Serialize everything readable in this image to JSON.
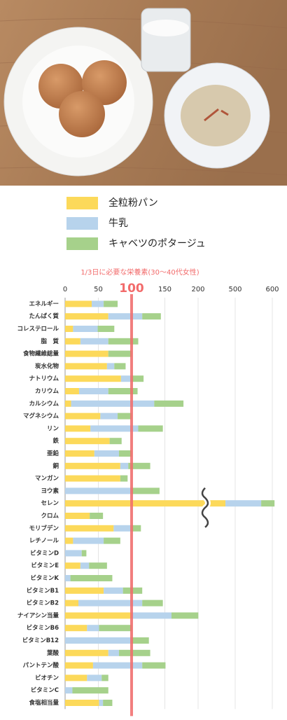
{
  "chart_data": {
    "type": "stacked-bar-horizontal",
    "title": "1/3日に必要な栄養素(30〜40代女性)",
    "categories": [
      "エネルギー",
      "たんぱく質",
      "コレステロール",
      "脂　質",
      "食物繊維総量",
      "炭水化物",
      "ナトリウム",
      "カリウム",
      "カルシウム",
      "マグネシウム",
      "リン",
      "鉄",
      "亜鉛",
      "銅",
      "マンガン",
      "ヨウ素",
      "セレン",
      "クロム",
      "モリブデン",
      "レチノール",
      "ビタミンD",
      "ビタミンE",
      "ビタミンK",
      "ビタミンB1",
      "ビタミンB2",
      "ナイアシン当量",
      "ビタミンB6",
      "ビタミンB12",
      "葉酸",
      "パントテン酸",
      "ビオチン",
      "ビタミンC",
      "食塩相当量"
    ],
    "series": [
      {
        "name": "全粒粉パン",
        "color": "#fcd95a",
        "values": [
          40,
          65,
          12,
          23,
          65,
          63,
          84,
          21,
          9,
          53,
          38,
          67,
          44,
          83,
          83,
          0,
          421,
          37,
          73,
          12,
          0,
          23,
          0,
          58,
          20,
          100,
          33,
          0,
          65,
          42,
          33,
          0,
          51
        ]
      },
      {
        "name": "牛乳",
        "color": "#b7d3ec",
        "values": [
          18,
          51,
          37,
          42,
          0,
          11,
          16,
          44,
          125,
          26,
          72,
          0,
          37,
          12,
          0,
          100,
          149,
          0,
          27,
          46,
          25,
          13,
          8,
          29,
          96,
          60,
          18,
          100,
          16,
          74,
          22,
          11,
          6
        ]
      },
      {
        "name": "キャベツのポタージュ",
        "color": "#a6d18b",
        "values": [
          21,
          28,
          25,
          45,
          35,
          17,
          18,
          44,
          44,
          21,
          37,
          18,
          19,
          33,
          11,
          42,
          36,
          20,
          14,
          25,
          7,
          27,
          63,
          29,
          31,
          42,
          49,
          26,
          47,
          35,
          10,
          54,
          14
        ]
      }
    ],
    "xlim": [
      0,
      600
    ],
    "xticks": [
      0,
      50,
      100,
      150,
      200,
      500,
      600
    ],
    "reference": 100,
    "reference_color": "#f26b6b",
    "grid": true
  }
}
